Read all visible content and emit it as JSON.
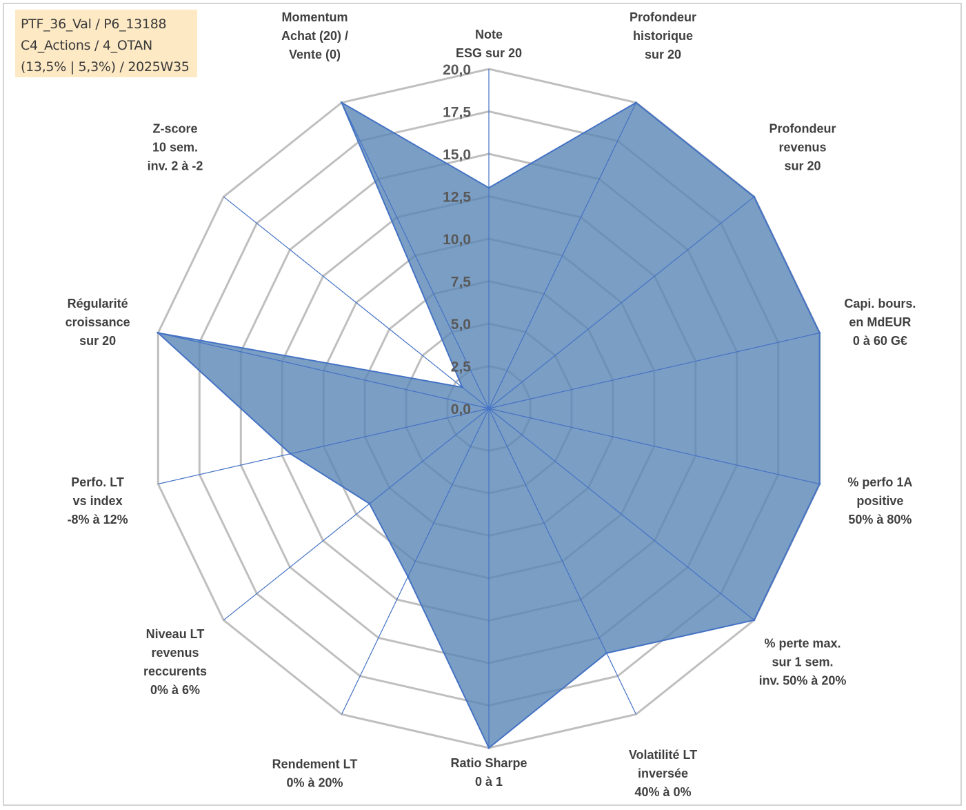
{
  "info_box": {
    "line1": "PTF_36_Val / P6_13188",
    "line2": "C4_Actions / 4_OTAN",
    "line3": "(13,5% | 5,3%) / 2025W35"
  },
  "colors": {
    "fill": "#5a86b6",
    "stroke": "#4472c4",
    "grid": "#bfbfbf",
    "info_bg": "#fde9c4"
  },
  "chart_data": {
    "type": "radar",
    "title": "",
    "rmin": 0,
    "rmax": 20,
    "ticks": [
      "0,0",
      "2,5",
      "5,0",
      "7,5",
      "10,0",
      "12,5",
      "15,0",
      "17,5",
      "20,0"
    ],
    "axes": [
      [
        "Note",
        "ESG sur 20"
      ],
      [
        "Profondeur",
        "historique",
        "sur 20"
      ],
      [
        "Profondeur",
        "revenus",
        "sur 20"
      ],
      [
        "Capi. bours.",
        "en MdEUR",
        "0 à 60 G€"
      ],
      [
        "% perfo 1A",
        "positive",
        "50% à 80%"
      ],
      [
        "% perte max.",
        "sur 1 sem.",
        "inv. 50% à 20%"
      ],
      [
        "Volatilité LT",
        "inversée",
        "40% à 0%"
      ],
      [
        "Ratio Sharpe",
        "0 à 1"
      ],
      [
        "Rendement LT",
        "0% à 20%"
      ],
      [
        "Niveau LT",
        "revenus",
        "reccurents",
        "0% à 6%"
      ],
      [
        "Perfo. LT",
        "vs index",
        "-8% à 12%"
      ],
      [
        "Régularité",
        "croissance",
        "sur 20"
      ],
      [
        "Z-score",
        "10 sem.",
        "inv. 2 à -2"
      ],
      [
        "Momentum",
        "Achat (20) /",
        "Vente (0)"
      ]
    ],
    "series": [
      {
        "values": [
          13.0,
          20.0,
          20.0,
          20.0,
          20.0,
          20.0,
          16.0,
          20.0,
          11.0,
          9.0,
          12.0,
          20.0,
          2.0,
          20.0
        ]
      }
    ],
    "grid": true,
    "legend": "none"
  }
}
